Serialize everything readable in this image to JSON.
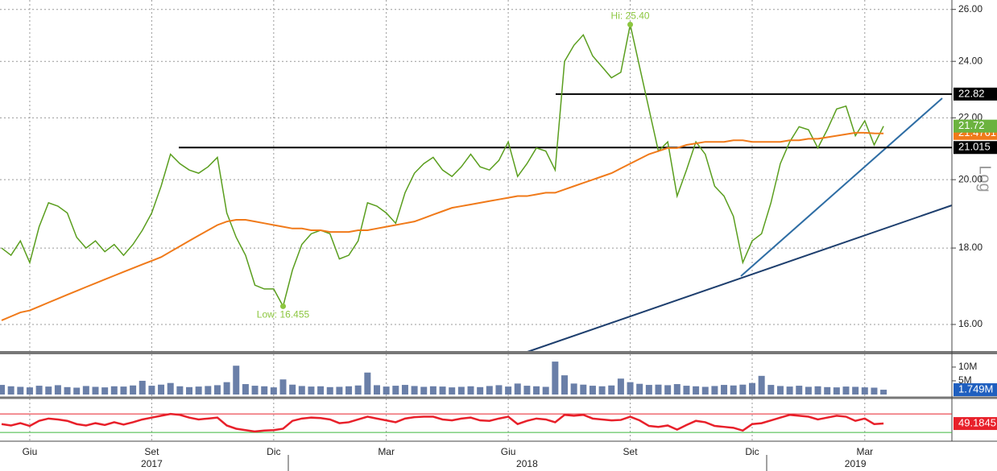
{
  "chart_data": [
    {
      "type": "line",
      "log_scale": true,
      "grid": true,
      "y_axis_label": "Log",
      "ylim": [
        15.32,
        26.38
      ],
      "yticks": [
        {
          "value": 16,
          "label": "16.00"
        },
        {
          "value": 18,
          "label": "18.00"
        },
        {
          "value": 20,
          "label": "20.00"
        },
        {
          "value": 22,
          "label": "22.00"
        },
        {
          "value": 24,
          "label": "24.00"
        },
        {
          "value": 26,
          "label": "26.00"
        }
      ],
      "categories": [
        null,
        null,
        null,
        "Giu",
        null,
        null,
        null,
        null,
        null,
        null,
        null,
        null,
        null,
        null,
        null,
        null,
        "Set",
        null,
        null,
        null,
        null,
        null,
        null,
        null,
        null,
        null,
        null,
        null,
        null,
        "Dic",
        null,
        null,
        null,
        null,
        null,
        null,
        null,
        null,
        null,
        null,
        null,
        "Mar",
        null,
        null,
        null,
        null,
        null,
        null,
        null,
        null,
        null,
        null,
        null,
        null,
        "Giu",
        null,
        null,
        null,
        null,
        null,
        null,
        null,
        null,
        null,
        null,
        null,
        null,
        "Set",
        null,
        null,
        null,
        null,
        null,
        null,
        null,
        null,
        null,
        null,
        null,
        null,
        "Dic",
        null,
        null,
        null,
        null,
        null,
        null,
        null,
        null,
        null,
        null,
        null,
        "Mar",
        null,
        null
      ],
      "year_labels": [
        null,
        null,
        null,
        null,
        null,
        null,
        null,
        null,
        null,
        null,
        null,
        null,
        null,
        null,
        null,
        null,
        "2017",
        null,
        null,
        null,
        null,
        null,
        null,
        null,
        null,
        null,
        null,
        null,
        null,
        null,
        null,
        null,
        null,
        null,
        null,
        null,
        null,
        null,
        null,
        null,
        null,
        null,
        null,
        null,
        null,
        null,
        null,
        null,
        null,
        null,
        null,
        null,
        null,
        null,
        null,
        null,
        "2018",
        null,
        null,
        null,
        null,
        null,
        null,
        null,
        null,
        null,
        null,
        null,
        null,
        null,
        null,
        null,
        null,
        null,
        null,
        null,
        null,
        null,
        null,
        null,
        null,
        null,
        null,
        null,
        null,
        null,
        null,
        null,
        null,
        null,
        null,
        "2019",
        null,
        null,
        null
      ],
      "series": [
        {
          "color": "#5a9e1e",
          "values": [
            18.0,
            17.8,
            18.2,
            17.6,
            18.6,
            19.3,
            19.2,
            19.0,
            18.3,
            18.0,
            18.2,
            17.9,
            18.1,
            17.8,
            18.1,
            18.5,
            19.0,
            19.8,
            20.8,
            20.5,
            20.3,
            20.2,
            20.4,
            20.7,
            19.0,
            18.3,
            17.8,
            17.0,
            16.9,
            16.9,
            16.455,
            17.4,
            18.1,
            18.4,
            18.5,
            18.4,
            17.7,
            17.8,
            18.2,
            19.3,
            19.2,
            19.0,
            18.7,
            19.6,
            20.2,
            20.5,
            20.7,
            20.3,
            20.1,
            20.4,
            20.8,
            20.4,
            20.3,
            20.6,
            21.2,
            20.1,
            20.5,
            21.0,
            20.9,
            20.3,
            24.0,
            24.6,
            25.0,
            24.2,
            23.8,
            23.4,
            23.6,
            25.4,
            23.8,
            22.3,
            20.9,
            21.2,
            19.5,
            20.3,
            21.2,
            20.8,
            19.8,
            19.5,
            18.9,
            17.6,
            18.2,
            18.4,
            19.3,
            20.5,
            21.2,
            21.7,
            21.6,
            21.0,
            21.6,
            22.3,
            22.4,
            21.4,
            21.9,
            21.1,
            21.72
          ]
        },
        {
          "color": "#f07a1a",
          "values": [
            16.1,
            16.2,
            16.3,
            16.35,
            16.45,
            16.55,
            16.65,
            16.75,
            16.85,
            16.95,
            17.05,
            17.15,
            17.25,
            17.35,
            17.45,
            17.55,
            17.65,
            17.75,
            17.9,
            18.05,
            18.2,
            18.35,
            18.5,
            18.65,
            18.75,
            18.8,
            18.8,
            18.75,
            18.7,
            18.65,
            18.6,
            18.55,
            18.55,
            18.5,
            18.5,
            18.45,
            18.45,
            18.45,
            18.5,
            18.5,
            18.55,
            18.6,
            18.65,
            18.7,
            18.75,
            18.85,
            18.95,
            19.05,
            19.15,
            19.2,
            19.25,
            19.3,
            19.35,
            19.4,
            19.45,
            19.5,
            19.5,
            19.55,
            19.6,
            19.6,
            19.7,
            19.8,
            19.9,
            20.0,
            20.1,
            20.2,
            20.35,
            20.5,
            20.65,
            20.8,
            20.9,
            21.0,
            21.0,
            21.1,
            21.15,
            21.2,
            21.2,
            21.2,
            21.25,
            21.25,
            21.2,
            21.2,
            21.2,
            21.2,
            21.25,
            21.25,
            21.3,
            21.3,
            21.35,
            21.4,
            21.45,
            21.5,
            21.5,
            21.48,
            21.4761
          ]
        }
      ],
      "levels": [
        22.82,
        21.015
      ],
      "level_color": "#000000",
      "annotations": [
        {
          "text": "Hi: 25.40",
          "value": 25.4,
          "color": "#8cc63f"
        },
        {
          "text": "Low: 16.455",
          "value": 16.455,
          "color": "#8cc63f"
        }
      ],
      "right_labels": [
        {
          "value": 22.82,
          "color": "#000000"
        },
        {
          "value": 21.015,
          "color": "#000000"
        },
        {
          "value": 21.4761,
          "color": "#f07a1a"
        },
        {
          "value": 21.72,
          "color": "#6cb33f"
        }
      ]
    },
    {
      "type": "bar",
      "ylim": [
        0,
        13.5
      ],
      "yticks": [
        {
          "value": 10,
          "label": "10M"
        },
        {
          "value": 5,
          "label": "5M"
        }
      ],
      "color": "#6a7fa8",
      "values": [
        3.5,
        3.0,
        2.8,
        2.6,
        3.2,
        2.9,
        3.4,
        2.7,
        2.5,
        3.1,
        2.8,
        2.6,
        3.0,
        2.9,
        3.3,
        5.0,
        3.2,
        3.6,
        4.2,
        3.0,
        2.7,
        2.9,
        3.1,
        3.4,
        4.5,
        10.5,
        3.8,
        3.2,
        3.0,
        2.6,
        5.5,
        3.6,
        3.1,
        2.9,
        3.0,
        2.7,
        2.8,
        3.0,
        3.3,
        8.0,
        3.4,
        2.9,
        3.2,
        3.5,
        3.1,
        2.8,
        3.0,
        2.9,
        2.6,
        2.8,
        3.0,
        2.7,
        3.1,
        3.4,
        2.9,
        4.0,
        3.2,
        3.0,
        2.8,
        12.0,
        7.0,
        4.0,
        3.6,
        3.2,
        3.0,
        3.3,
        5.8,
        4.5,
        3.9,
        3.5,
        3.6,
        3.4,
        3.8,
        3.2,
        3.0,
        2.8,
        3.1,
        3.5,
        3.3,
        3.6,
        4.2,
        6.8,
        3.5,
        3.1,
        2.9,
        3.2,
        2.8,
        3.0,
        2.7,
        2.6,
        2.9,
        2.8,
        2.6,
        2.5,
        1.749
      ],
      "current": {
        "value": 1.749,
        "label": "1.749M",
        "color": "#1f5fbf"
      }
    },
    {
      "type": "line",
      "ylim": [
        11,
        98
      ],
      "color": "#e8202a",
      "values": [
        48,
        45,
        50,
        44,
        55,
        60,
        58,
        55,
        48,
        45,
        50,
        46,
        52,
        47,
        52,
        58,
        62,
        66,
        70,
        68,
        62,
        58,
        60,
        62,
        45,
        38,
        35,
        32,
        34,
        35,
        38,
        55,
        60,
        62,
        61,
        58,
        50,
        52,
        58,
        64,
        60,
        56,
        52,
        60,
        63,
        64,
        64,
        58,
        56,
        60,
        62,
        56,
        55,
        60,
        64,
        48,
        55,
        60,
        58,
        52,
        68,
        66,
        68,
        60,
        58,
        56,
        57,
        64,
        56,
        44,
        42,
        45,
        36,
        46,
        55,
        52,
        44,
        42,
        40,
        34,
        48,
        50,
        56,
        62,
        68,
        66,
        64,
        58,
        62,
        66,
        64,
        55,
        60,
        48,
        49.1845
      ],
      "reference_lines": [
        {
          "value": 70,
          "color": "#e8202a"
        },
        {
          "value": 30,
          "color": "#3cb83c"
        }
      ],
      "current": {
        "value": 49.1845,
        "color": "#e8202a"
      }
    }
  ]
}
